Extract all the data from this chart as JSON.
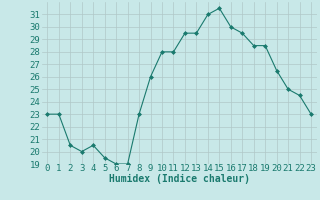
{
  "x": [
    0,
    1,
    2,
    3,
    4,
    5,
    6,
    7,
    8,
    9,
    10,
    11,
    12,
    13,
    14,
    15,
    16,
    17,
    18,
    19,
    20,
    21,
    22,
    23
  ],
  "y": [
    23,
    23,
    20.5,
    20,
    20.5,
    19.5,
    19,
    19,
    23,
    26,
    28,
    28,
    29.5,
    29.5,
    31,
    31.5,
    30,
    29.5,
    28.5,
    28.5,
    26.5,
    25,
    24.5,
    23
  ],
  "xlabel": "Humidex (Indice chaleur)",
  "ylim": [
    19,
    32
  ],
  "xlim": [
    -0.5,
    23.5
  ],
  "yticks": [
    19,
    20,
    21,
    22,
    23,
    24,
    25,
    26,
    27,
    28,
    29,
    30,
    31
  ],
  "xticks": [
    0,
    1,
    2,
    3,
    4,
    5,
    6,
    7,
    8,
    9,
    10,
    11,
    12,
    13,
    14,
    15,
    16,
    17,
    18,
    19,
    20,
    21,
    22,
    23
  ],
  "line_color": "#1a7a6e",
  "marker_color": "#1a7a6e",
  "bg_color": "#c8e8e8",
  "grid_color": "#b0c8c8",
  "font_color": "#1a7a6e",
  "xlabel_fontsize": 7,
  "tick_fontsize": 6.5
}
